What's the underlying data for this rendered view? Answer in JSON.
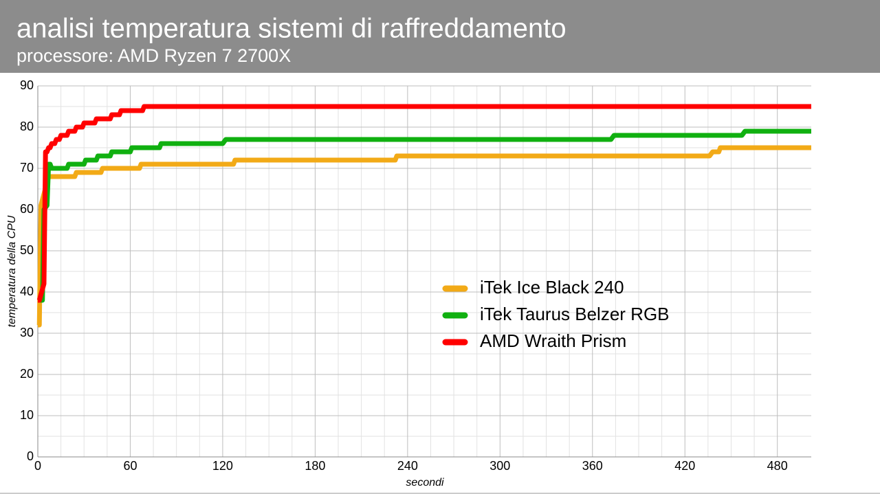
{
  "chart_data": {
    "type": "line",
    "title": "analisi temperatura sistemi di raffreddamento",
    "subtitle": "processore: AMD Ryzen 7 2700X",
    "x_label": "secondi",
    "y_label": "temperatura della CPU",
    "xlim": [
      0,
      502
    ],
    "xticks": [
      0,
      60,
      120,
      180,
      240,
      300,
      360,
      420,
      480
    ],
    "ylim": [
      0,
      90
    ],
    "yticks": [
      0,
      10,
      20,
      30,
      40,
      50,
      60,
      70,
      80,
      90
    ],
    "grid": true,
    "series": [
      {
        "name": "iTek Ice Black 240",
        "color": "#f2aa17",
        "x": [
          0,
          1,
          2,
          7,
          24,
          25,
          41,
          42,
          66,
          67,
          127,
          128,
          232,
          233,
          436,
          438,
          442,
          443,
          502
        ],
        "values": [
          32,
          32,
          61,
          68,
          68,
          69,
          69,
          70,
          70,
          71,
          71,
          72,
          72,
          73,
          73,
          74,
          74,
          75,
          75
        ]
      },
      {
        "name": "iTek Taurus Belzer RGB",
        "color": "#10b010",
        "x": [
          0,
          3,
          4,
          6,
          7,
          8,
          9,
          19,
          20,
          30,
          31,
          38,
          39,
          47,
          48,
          60,
          61,
          79,
          80,
          120,
          122,
          372,
          374,
          457,
          459,
          502
        ],
        "values": [
          38,
          38,
          60,
          61,
          71,
          71,
          70,
          70,
          71,
          71,
          72,
          72,
          73,
          73,
          74,
          74,
          75,
          75,
          76,
          76,
          77,
          77,
          78,
          78,
          79,
          79
        ]
      },
      {
        "name": "AMD Wraith Prism",
        "color": "#ff0000",
        "x": [
          0,
          1,
          4,
          5,
          6,
          7,
          8,
          9,
          11,
          12,
          14,
          15,
          19,
          20,
          24,
          25,
          29,
          30,
          37,
          38,
          47,
          48,
          53,
          54,
          68,
          69,
          502
        ],
        "values": [
          38,
          38,
          42,
          74,
          74,
          75,
          75,
          76,
          76,
          77,
          77,
          78,
          78,
          79,
          79,
          80,
          80,
          81,
          81,
          82,
          82,
          83,
          83,
          84,
          84,
          85,
          85
        ]
      }
    ]
  }
}
